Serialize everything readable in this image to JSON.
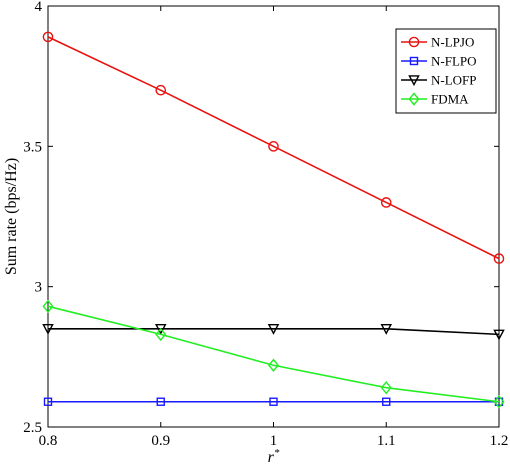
{
  "chart_data": {
    "type": "line",
    "title": "",
    "xlabel": "r*",
    "xlabel_base": "r",
    "xlabel_sup": "*",
    "ylabel": "Sum rate (bps/Hz)",
    "xlim": [
      0.8,
      1.2
    ],
    "ylim": [
      2.5,
      4
    ],
    "xticks": [
      0.8,
      0.9,
      1.0,
      1.1,
      1.2
    ],
    "xtick_labels": [
      "0.8",
      "0.9",
      "1",
      "1.1",
      "1.2"
    ],
    "yticks": [
      2.5,
      3,
      3.5,
      4
    ],
    "ytick_labels": [
      "2.5",
      "3",
      "3.5",
      "4"
    ],
    "grid": false,
    "legend_position": "top-right",
    "x": [
      0.8,
      0.9,
      1.0,
      1.1,
      1.2
    ],
    "series": [
      {
        "name": "N-LPJO",
        "values": [
          3.89,
          3.7,
          3.5,
          3.3,
          3.1
        ],
        "color": "#e8130f",
        "marker": "circle"
      },
      {
        "name": "N-FLPO",
        "values": [
          2.59,
          2.59,
          2.59,
          2.59,
          2.59
        ],
        "color": "#1a1aff",
        "marker": "square"
      },
      {
        "name": "N-LOFP",
        "values": [
          2.85,
          2.85,
          2.85,
          2.85,
          2.83
        ],
        "color": "#000000",
        "marker": "triangle-down"
      },
      {
        "name": "FDMA",
        "values": [
          2.93,
          2.83,
          2.72,
          2.64,
          2.59
        ],
        "color": "#22ee22",
        "marker": "diamond"
      }
    ]
  }
}
